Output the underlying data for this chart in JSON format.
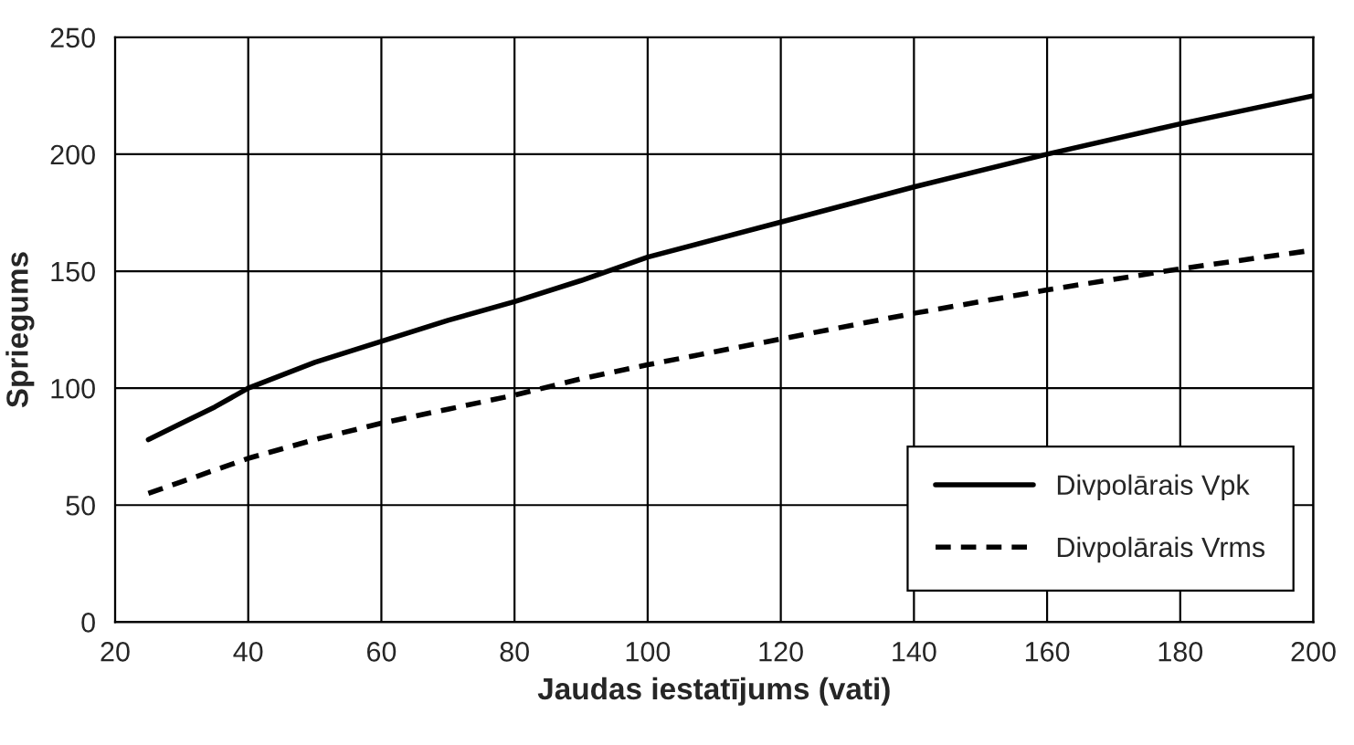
{
  "chart_data": {
    "type": "line",
    "xlabel": "Jaudas iestatījums (vati)",
    "ylabel": "Spriegums",
    "x": [
      25,
      30,
      35,
      40,
      50,
      60,
      70,
      80,
      90,
      100,
      120,
      140,
      160,
      180,
      200
    ],
    "series": [
      {
        "name": "Divpolārais Vpk",
        "color": "#000000",
        "line_style": "solid",
        "values": [
          78,
          85,
          92,
          100,
          111,
          120,
          129,
          137,
          146,
          156,
          171,
          186,
          200,
          213,
          225
        ]
      },
      {
        "name": "Divpolārais Vrms",
        "color": "#000000",
        "line_style": "dashed",
        "values": [
          55,
          60,
          65,
          70,
          78,
          85,
          91,
          97,
          104,
          110,
          121,
          132,
          142,
          151,
          159
        ]
      }
    ],
    "xlim": [
      20,
      200
    ],
    "xticks": [
      20,
      40,
      60,
      80,
      100,
      120,
      140,
      160,
      180,
      200
    ],
    "ylim": [
      0,
      250
    ],
    "yticks": [
      0,
      50,
      100,
      150,
      200,
      250
    ],
    "grid": true,
    "legend": "bottom right",
    "marker": "none"
  }
}
